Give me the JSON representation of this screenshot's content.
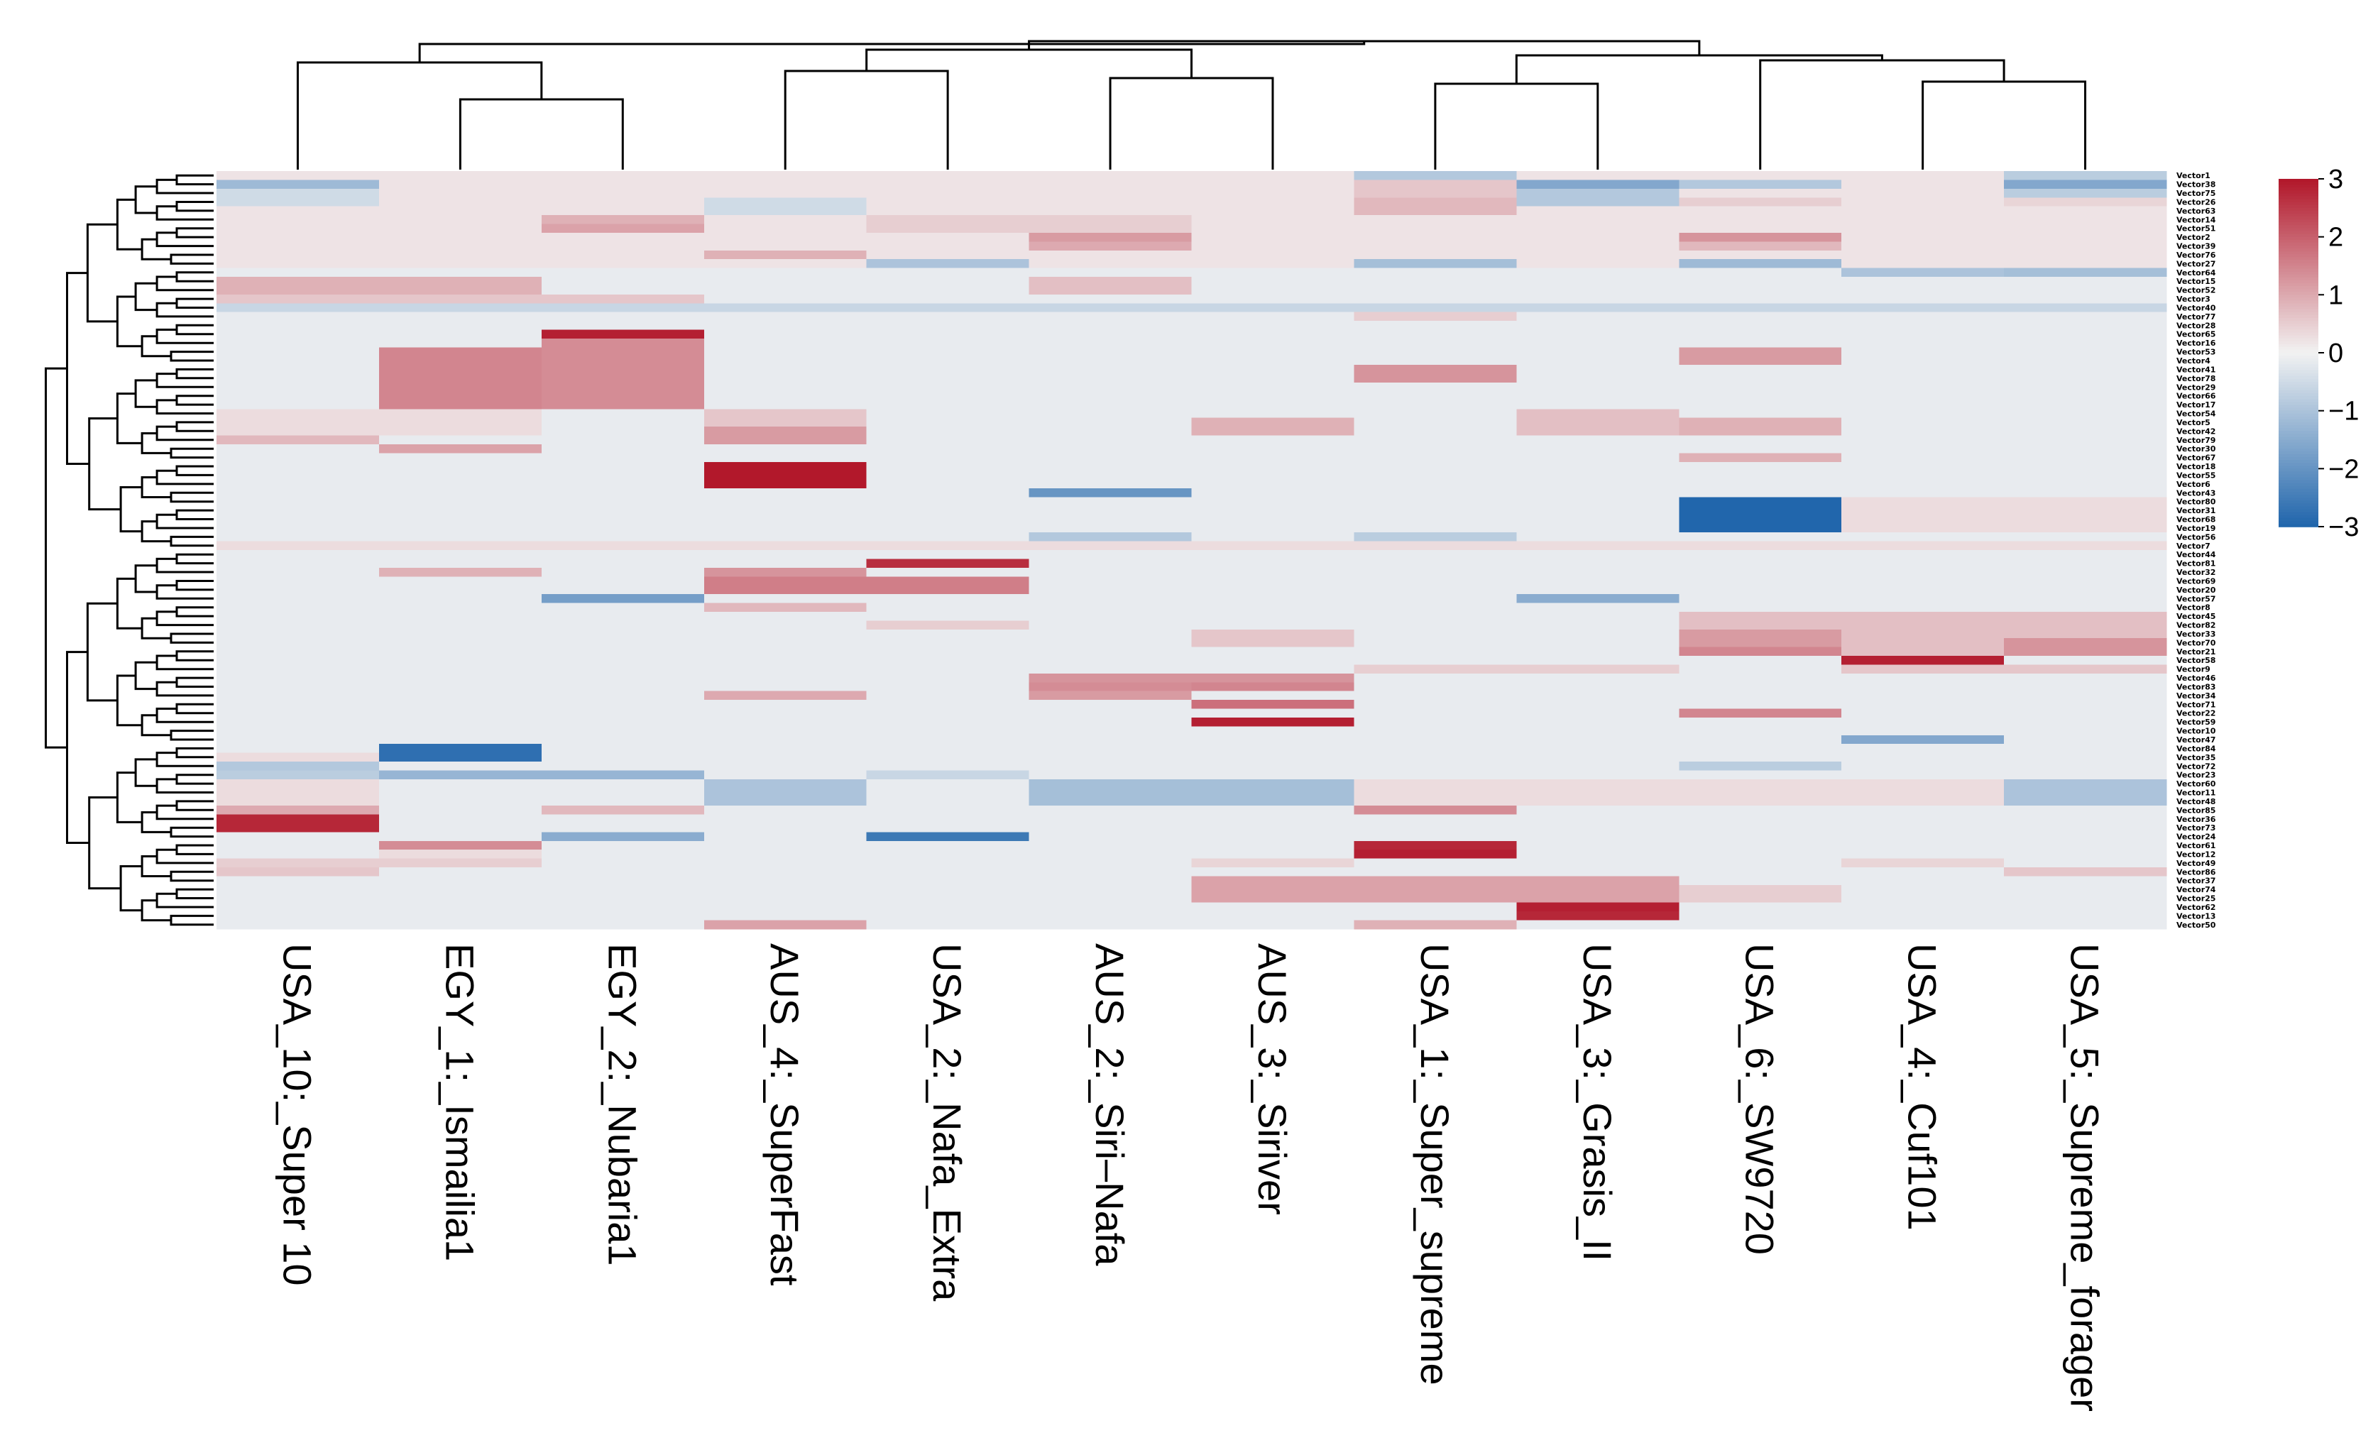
{
  "chart_data": {
    "type": "heatmap",
    "title": "",
    "columns": [
      "USA_10:_Super 10",
      "EGY_1:_Ismailia1",
      "EGY_2:_Nubaria1",
      "AUS_4:_SuperFast",
      "USA_2:_Nafa_Extra",
      "AUS_2:_Siri–Nafa",
      "AUS_3:_Siriver",
      "USA_1:_Super_supreme",
      "USA_3:_Grasis_II",
      "USA_6:_SW9720",
      "USA_4:_Cuf101",
      "USA_5:_Supreme_forager"
    ],
    "row_count": 86,
    "row_label_prefix": "Vector",
    "color_scale": {
      "min": -3,
      "max": 3,
      "low": "#2166ac",
      "mid": "#f2f2f2",
      "high": "#b2182b",
      "ticks": [
        "3",
        "2",
        "1",
        "0",
        "−1",
        "−2",
        "−3"
      ]
    },
    "default_value": -0.15,
    "blocks": [
      [
        0,
        10,
        0,
        12,
        0.2
      ],
      [
        1,
        1,
        0,
        1,
        -1.2
      ],
      [
        2,
        3,
        0,
        1,
        -0.5
      ],
      [
        1,
        2,
        7,
        8,
        0.6
      ],
      [
        3,
        4,
        7,
        8,
        0.8
      ],
      [
        1,
        1,
        8,
        9,
        -1.6
      ],
      [
        2,
        3,
        8,
        9,
        -0.9
      ],
      [
        1,
        1,
        9,
        10,
        -0.9
      ],
      [
        3,
        3,
        9,
        10,
        0.5
      ],
      [
        1,
        1,
        11,
        12,
        -1.6
      ],
      [
        2,
        2,
        11,
        12,
        -0.8
      ],
      [
        3,
        3,
        11,
        12,
        0.4
      ],
      [
        0,
        0,
        7,
        8,
        -0.9
      ],
      [
        0,
        0,
        11,
        12,
        -0.8
      ],
      [
        3,
        4,
        3,
        4,
        -0.5
      ],
      [
        5,
        6,
        4,
        6,
        0.5
      ],
      [
        5,
        5,
        2,
        3,
        0.9
      ],
      [
        6,
        6,
        2,
        3,
        1.1
      ],
      [
        7,
        7,
        5,
        6,
        1.2
      ],
      [
        8,
        8,
        5,
        6,
        1.0
      ],
      [
        9,
        9,
        3,
        4,
        0.9
      ],
      [
        7,
        7,
        9,
        10,
        1.3
      ],
      [
        8,
        8,
        9,
        10,
        0.8
      ],
      [
        10,
        10,
        4,
        5,
        -1.0
      ],
      [
        10,
        10,
        7,
        8,
        -1.1
      ],
      [
        10,
        10,
        9,
        10,
        -1.2
      ],
      [
        11,
        11,
        10,
        11,
        -1.0
      ],
      [
        11,
        11,
        11,
        12,
        -1.1
      ],
      [
        12,
        13,
        0,
        2,
        0.9
      ],
      [
        14,
        14,
        0,
        3,
        0.6
      ],
      [
        12,
        13,
        5,
        6,
        0.7
      ],
      [
        15,
        15,
        0,
        12,
        -0.6
      ],
      [
        16,
        16,
        7,
        8,
        0.5
      ],
      [
        18,
        18,
        2,
        3,
        2.9
      ],
      [
        20,
        21,
        9,
        10,
        1.2
      ],
      [
        20,
        26,
        1,
        2,
        1.5
      ],
      [
        19,
        26,
        2,
        3,
        1.4
      ],
      [
        22,
        23,
        7,
        8,
        1.3
      ],
      [
        27,
        29,
        0,
        2,
        0.3
      ],
      [
        27,
        28,
        3,
        4,
        0.6
      ],
      [
        29,
        30,
        3,
        4,
        1.2
      ],
      [
        28,
        29,
        6,
        7,
        0.9
      ],
      [
        27,
        29,
        8,
        9,
        0.7
      ],
      [
        28,
        29,
        9,
        10,
        0.9
      ],
      [
        30,
        30,
        0,
        1,
        0.8
      ],
      [
        31,
        31,
        1,
        2,
        1.1
      ],
      [
        32,
        32,
        9,
        10,
        0.9
      ],
      [
        33,
        35,
        3,
        4,
        3.0
      ],
      [
        36,
        36,
        5,
        6,
        -2.0
      ],
      [
        37,
        40,
        9,
        10,
        -3.0
      ],
      [
        37,
        40,
        10,
        12,
        0.3
      ],
      [
        41,
        41,
        5,
        6,
        -0.9
      ],
      [
        41,
        41,
        7,
        8,
        -0.8
      ],
      [
        42,
        42,
        0,
        12,
        0.3
      ],
      [
        44,
        44,
        4,
        5,
        2.7
      ],
      [
        45,
        45,
        3,
        4,
        1.3
      ],
      [
        46,
        47,
        3,
        5,
        1.6
      ],
      [
        45,
        45,
        1,
        2,
        0.9
      ],
      [
        48,
        48,
        2,
        3,
        -1.8
      ],
      [
        48,
        48,
        8,
        9,
        -1.5
      ],
      [
        49,
        49,
        3,
        4,
        0.8
      ],
      [
        50,
        54,
        9,
        12,
        0.7
      ],
      [
        52,
        53,
        9,
        10,
        1.2
      ],
      [
        53,
        54,
        11,
        12,
        1.3
      ],
      [
        54,
        54,
        9,
        10,
        1.5
      ],
      [
        51,
        51,
        4,
        5,
        0.5
      ],
      [
        52,
        53,
        6,
        7,
        0.6
      ],
      [
        55,
        55,
        10,
        11,
        2.9
      ],
      [
        56,
        56,
        7,
        9,
        0.5
      ],
      [
        56,
        56,
        10,
        12,
        0.6
      ],
      [
        57,
        57,
        5,
        7,
        1.3
      ],
      [
        58,
        58,
        5,
        6,
        1.4
      ],
      [
        58,
        58,
        6,
        7,
        1.5
      ],
      [
        59,
        59,
        5,
        6,
        1.2
      ],
      [
        59,
        59,
        3,
        4,
        1.0
      ],
      [
        60,
        60,
        6,
        7,
        1.8
      ],
      [
        61,
        61,
        9,
        10,
        1.5
      ],
      [
        62,
        62,
        6,
        7,
        2.9
      ],
      [
        64,
        64,
        10,
        11,
        -1.6
      ],
      [
        65,
        66,
        1,
        2,
        -2.8
      ],
      [
        66,
        66,
        0,
        1,
        0.3
      ],
      [
        67,
        67,
        0,
        1,
        -0.9
      ],
      [
        67,
        67,
        9,
        10,
        -0.8
      ],
      [
        68,
        68,
        1,
        3,
        -1.3
      ],
      [
        68,
        68,
        0,
        1,
        -0.8
      ],
      [
        68,
        68,
        4,
        5,
        -0.6
      ],
      [
        69,
        71,
        3,
        4,
        -1.0
      ],
      [
        69,
        71,
        5,
        7,
        -1.1
      ],
      [
        69,
        71,
        11,
        12,
        -1.0
      ],
      [
        69,
        71,
        0,
        1,
        0.3
      ],
      [
        69,
        71,
        7,
        11,
        0.3
      ],
      [
        72,
        72,
        0,
        1,
        1.0
      ],
      [
        72,
        72,
        2,
        3,
        0.8
      ],
      [
        72,
        72,
        7,
        8,
        1.4
      ],
      [
        73,
        74,
        0,
        1,
        2.8
      ],
      [
        75,
        75,
        4,
        5,
        -2.6
      ],
      [
        75,
        75,
        2,
        3,
        -1.5
      ],
      [
        76,
        76,
        1,
        2,
        1.4
      ],
      [
        76,
        76,
        7,
        8,
        2.8
      ],
      [
        77,
        77,
        7,
        8,
        2.9
      ],
      [
        77,
        77,
        1,
        2,
        0.3
      ],
      [
        78,
        78,
        0,
        2,
        0.5
      ],
      [
        78,
        78,
        6,
        7,
        0.4
      ],
      [
        78,
        78,
        10,
        11,
        0.4
      ],
      [
        79,
        79,
        0,
        1,
        0.6
      ],
      [
        79,
        79,
        11,
        12,
        0.6
      ],
      [
        80,
        82,
        6,
        9,
        1.1
      ],
      [
        81,
        82,
        9,
        10,
        0.5
      ],
      [
        83,
        83,
        8,
        9,
        2.9
      ],
      [
        84,
        84,
        8,
        9,
        2.8
      ],
      [
        85,
        85,
        3,
        4,
        1.1
      ],
      [
        85,
        85,
        7,
        8,
        0.9
      ]
    ]
  }
}
